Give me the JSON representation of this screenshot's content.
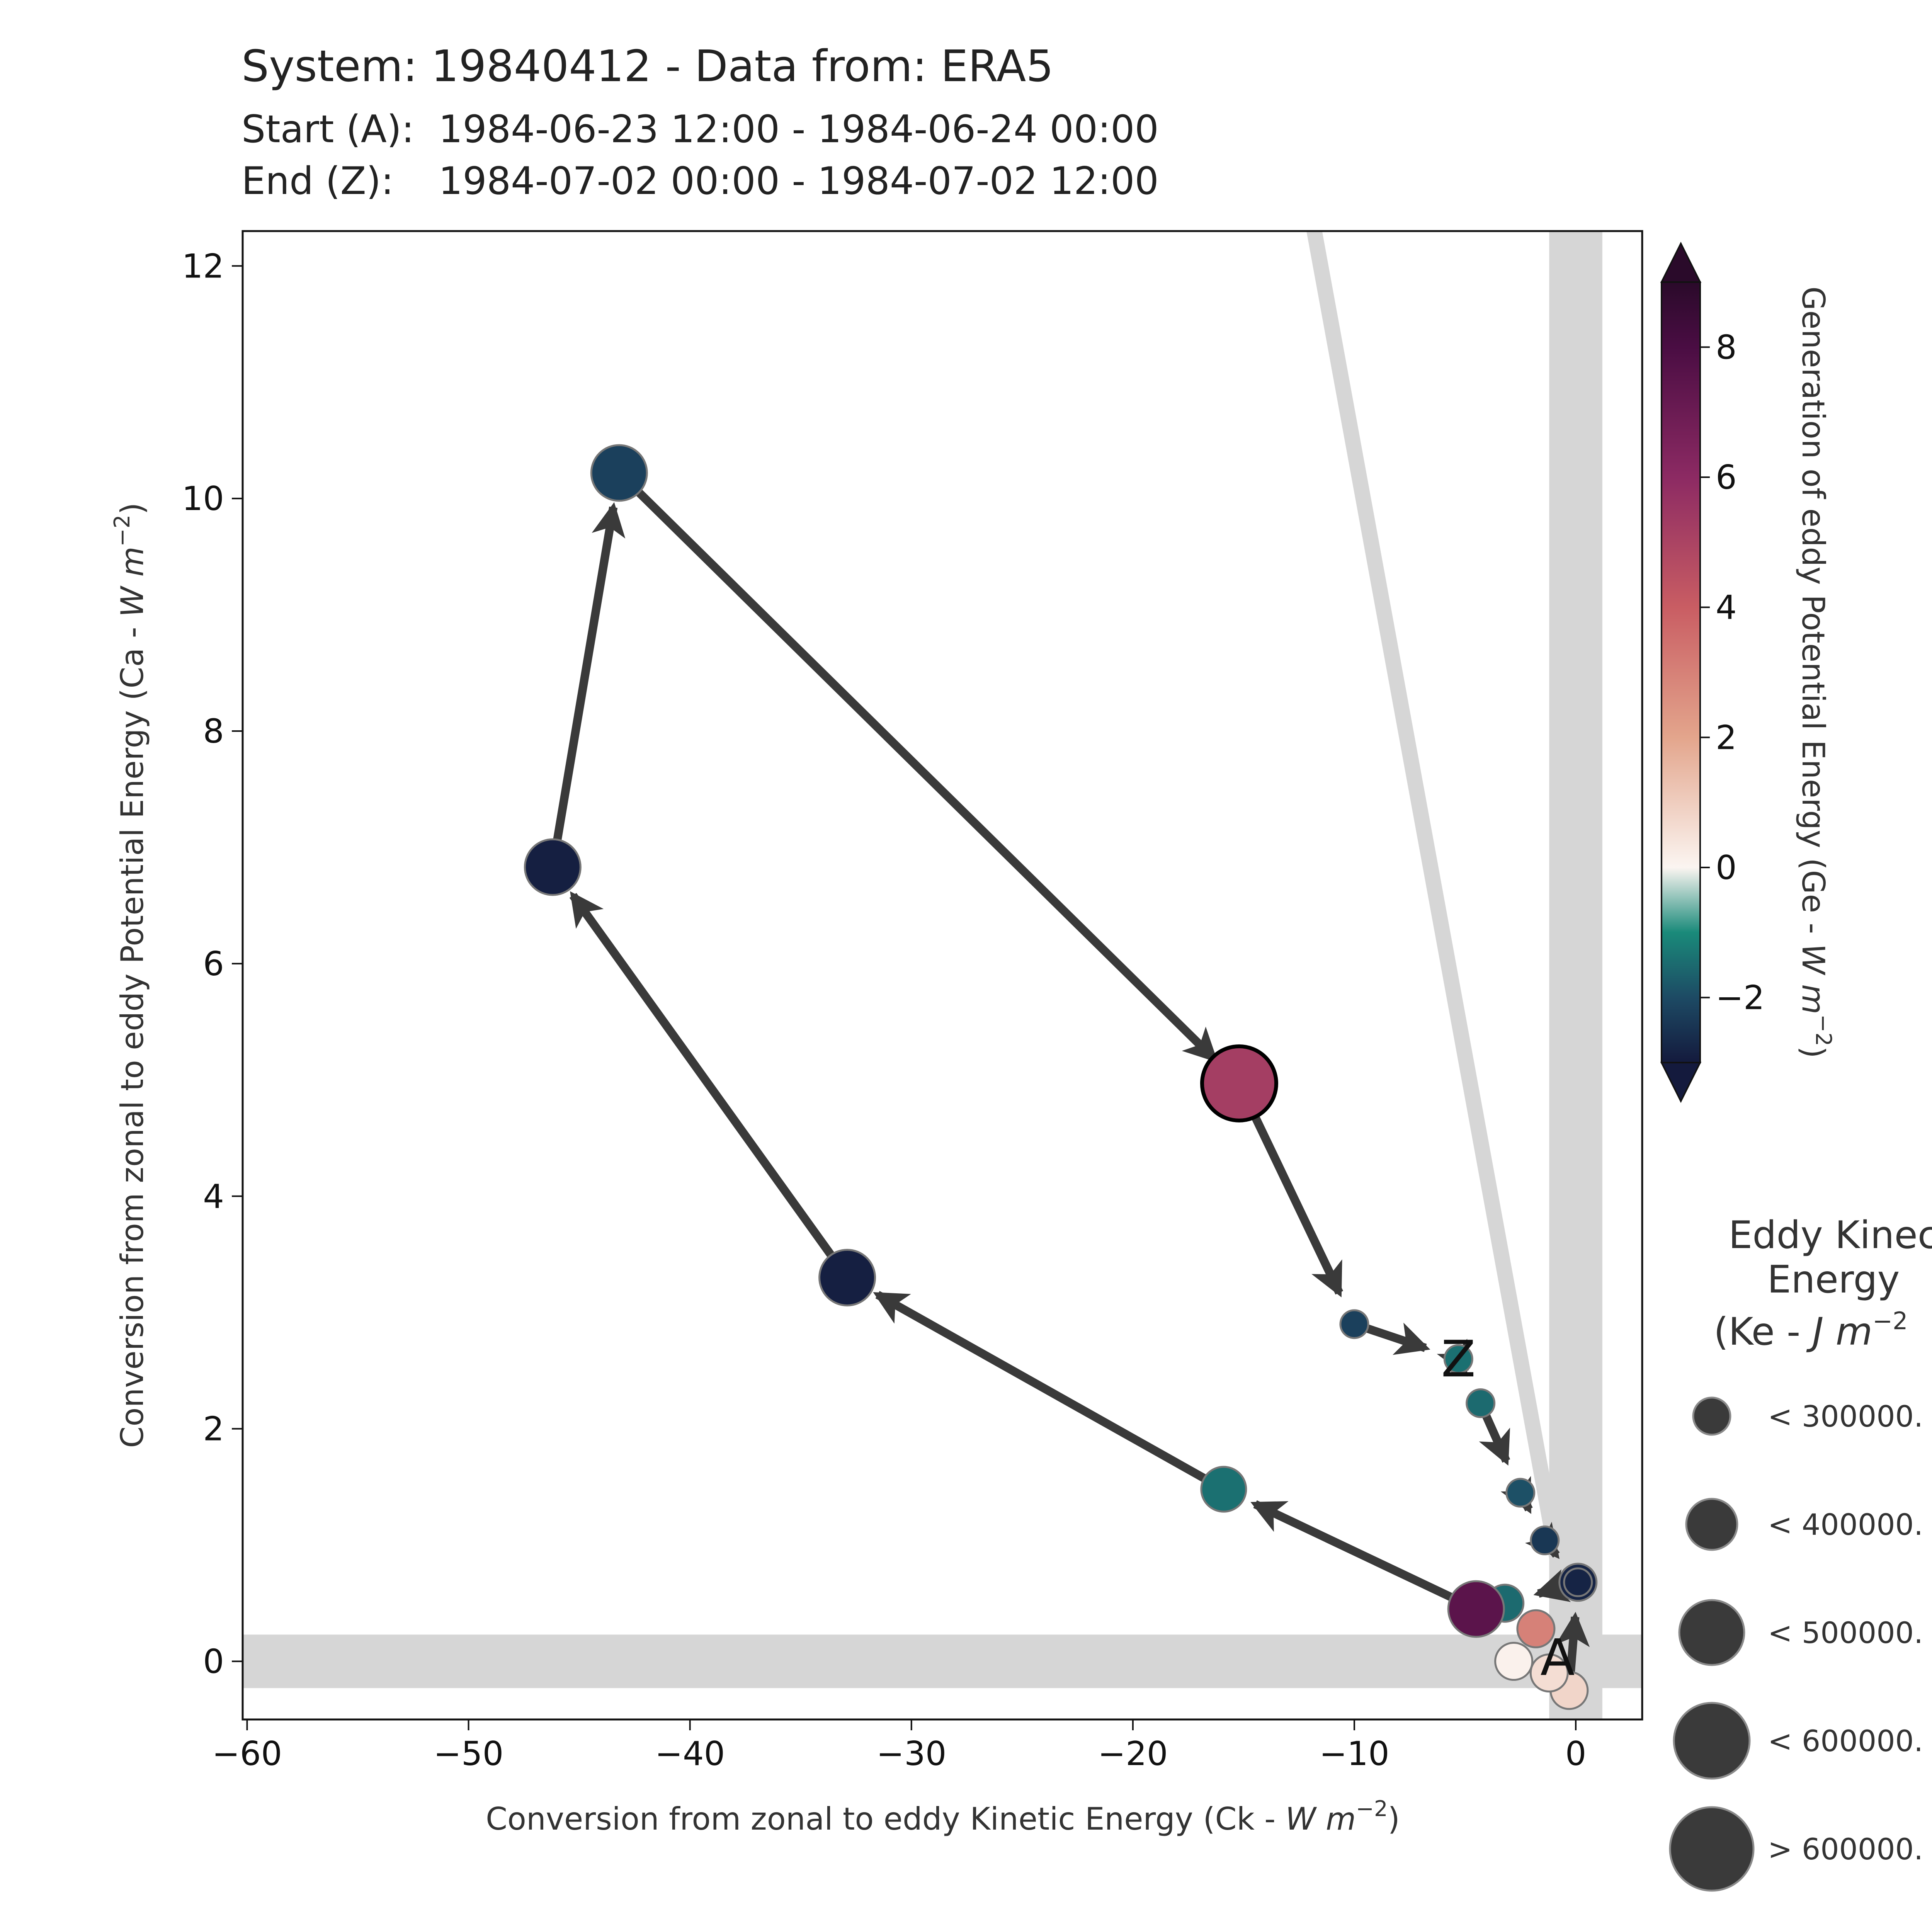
{
  "header": {
    "title": "System: 19840412 - Data from: ERA5",
    "start_label": "Start (A):",
    "start_value": "1984-06-23 12:00 - 1984-06-24 00:00",
    "end_label": "End (Z):",
    "end_value": "1984-07-02 00:00 - 1984-07-02 12:00"
  },
  "chart_data": {
    "type": "scatter",
    "subtype": "trajectory with arrows (Lorenz energy-cycle phase diagram)",
    "title": "System: 19840412 - Data from: ERA5",
    "xlabel": "Conversion from zonal to eddy Kinetic Energy (Ck - ",
    "xlabel_unit": "W m",
    "xlabel_exp": "−2",
    "ylabel": "Conversion from zonal to eddy Potential Energy (Ca - ",
    "ylabel_unit": "W m",
    "ylabel_exp": "−2",
    "xlim": [
      -60.2,
      3.0
    ],
    "ylim": [
      -0.5,
      12.3
    ],
    "xticks": [
      -60,
      -50,
      -40,
      -30,
      -20,
      -10,
      0
    ],
    "xtick_labels": [
      "−60",
      "−50",
      "−40",
      "−30",
      "−20",
      "−10",
      "0"
    ],
    "yticks": [
      0,
      2,
      4,
      6,
      8,
      10,
      12
    ],
    "ytick_labels": [
      "0",
      "2",
      "4",
      "6",
      "8",
      "10",
      "12"
    ],
    "grid": false,
    "reference_bands": {
      "x": 0,
      "y": 0,
      "x_halfwidth": 1.2,
      "y_halfwidth": 0.23
    },
    "reference_line": {
      "from": [
        -12.0,
        12.5
      ],
      "to": [
        0.0,
        0.0
      ]
    },
    "colorbar": {
      "label": "Generation of eddy Potential Energy (Ge - ",
      "label_unit": "W m",
      "label_exp": "−2",
      "ticks": [
        -2,
        0,
        2,
        4,
        6,
        8
      ],
      "tick_labels": [
        "−2",
        "0",
        "2",
        "4",
        "6",
        "8"
      ],
      "range": [
        -3.0,
        9.0
      ],
      "extend": "both",
      "colormap": "diverging dark-navy → teal → white → salmon → purple"
    },
    "size_legend": {
      "title_lines": [
        "Eddy Kinec",
        "Energy",
        "(Ke - "
      ],
      "title_unit": "J m",
      "title_exp": "−2",
      "entries": [
        "< 300000.",
        "< 400000.",
        "< 500000.",
        "< 600000.",
        "> 600000."
      ]
    },
    "start_marker": "A",
    "end_marker": "Z",
    "points": [
      {
        "ck": -0.3,
        "ca": -0.25,
        "ge": 0.8,
        "size": 1
      },
      {
        "ck": -1.2,
        "ca": -0.1,
        "ge": 0.6,
        "size": 1
      },
      {
        "ck": -2.8,
        "ca": 0.0,
        "ge": 0.1,
        "size": 1
      },
      {
        "ck": -1.8,
        "ca": 0.28,
        "ge": 3.0,
        "size": 1
      },
      {
        "ck": 0.1,
        "ca": 0.68,
        "ge": -2.8,
        "size": 1
      },
      {
        "ck": -3.2,
        "ca": 0.5,
        "ge": -1.5,
        "size": 1
      },
      {
        "ck": -4.5,
        "ca": 0.45,
        "ge": 7.5,
        "size": 3
      },
      {
        "ck": -15.9,
        "ca": 1.48,
        "ge": -1.4,
        "size": 2
      },
      {
        "ck": -32.9,
        "ca": 3.3,
        "ge": -2.9,
        "size": 3
      },
      {
        "ck": -46.2,
        "ca": 6.83,
        "ge": -2.9,
        "size": 3
      },
      {
        "ck": -43.2,
        "ca": 10.22,
        "ge": -2.2,
        "size": 3
      },
      {
        "ck": -15.2,
        "ca": 4.97,
        "ge": 5.2,
        "size": 4
      },
      {
        "ck": -10.0,
        "ca": 2.9,
        "ge": -2.2,
        "size": 0
      },
      {
        "ck": -5.3,
        "ca": 2.6,
        "ge": -1.4,
        "size": 0
      },
      {
        "ck": -4.3,
        "ca": 2.22,
        "ge": -1.5,
        "size": 0
      },
      {
        "ck": -2.5,
        "ca": 1.45,
        "ge": -1.9,
        "size": 0
      },
      {
        "ck": -1.4,
        "ca": 1.04,
        "ge": -2.4,
        "size": 0
      },
      {
        "ck": 0.1,
        "ca": 0.68,
        "ge": -2.8,
        "size": 0
      }
    ],
    "path": [
      [
        -0.3,
        -0.25
      ],
      [
        0.1,
        0.68
      ],
      [
        -3.2,
        0.5
      ],
      [
        -4.5,
        0.45
      ],
      [
        -15.9,
        1.48
      ],
      [
        -32.9,
        3.3
      ],
      [
        -46.2,
        6.83
      ],
      [
        -43.2,
        10.22
      ],
      [
        -15.2,
        4.97
      ],
      [
        -10.0,
        2.9
      ],
      [
        -5.3,
        2.6
      ],
      [
        -4.3,
        2.22
      ],
      [
        -2.5,
        1.45
      ],
      [
        -1.4,
        1.04
      ],
      [
        0.1,
        0.68
      ]
    ]
  }
}
